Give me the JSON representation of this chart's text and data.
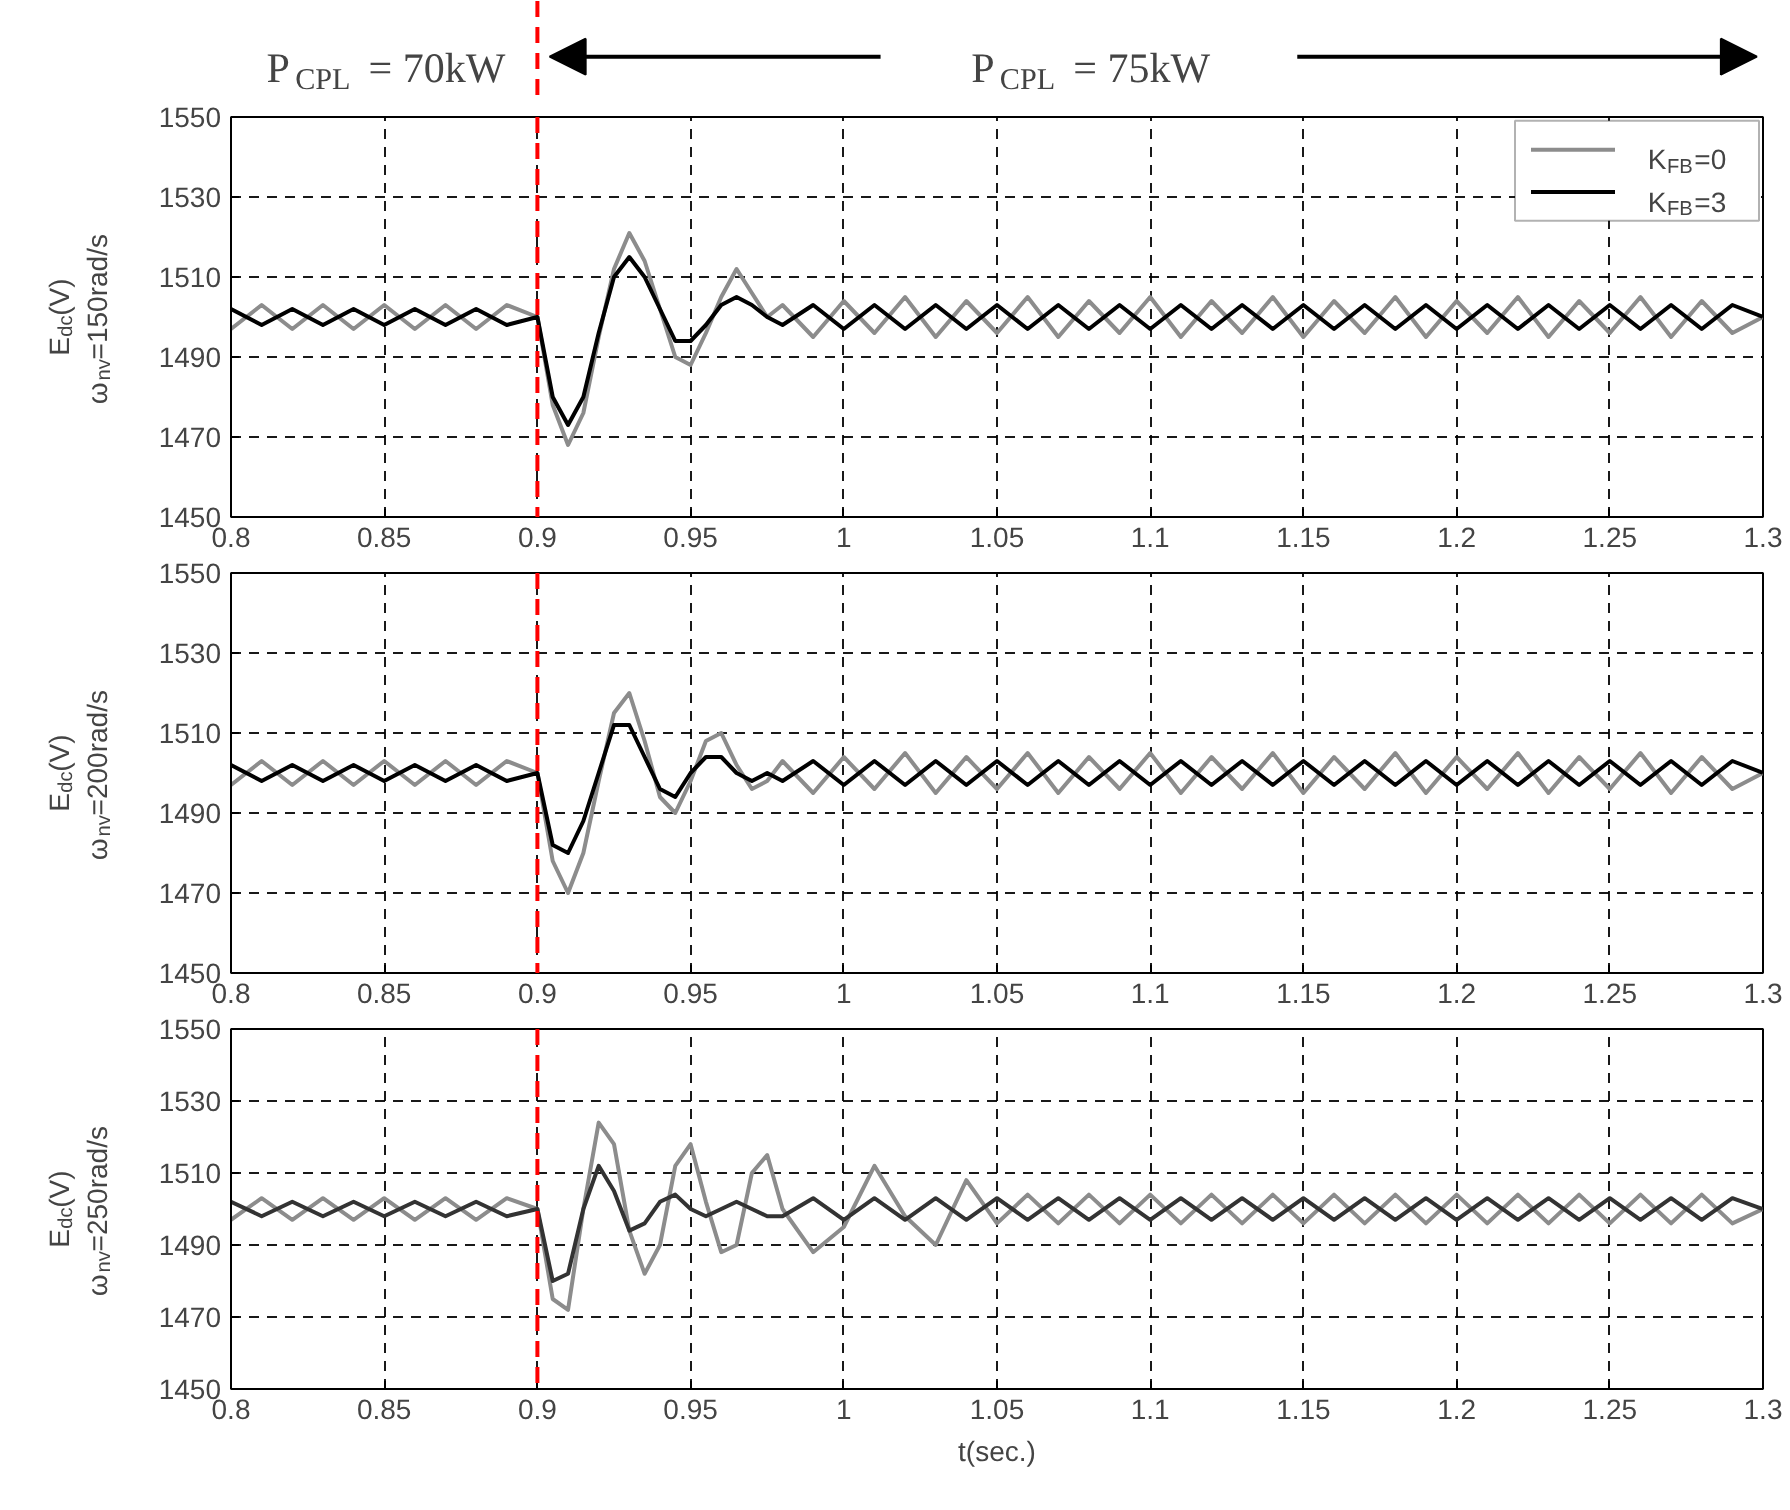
{
  "chart_data": [
    {
      "type": "line",
      "ylabel": "E$_{dc}$(V)\nω$_{nv}$=150rad/s",
      "xlim": [
        0.8,
        1.3
      ],
      "xticks": [
        0.8,
        0.85,
        0.9,
        0.95,
        1,
        1.05,
        1.1,
        1.15,
        1.2,
        1.25,
        1.3
      ],
      "ylim": [
        1450,
        1550
      ],
      "yticks": [
        1450,
        1470,
        1490,
        1510,
        1530,
        1550
      ],
      "grid": true,
      "legend": "top right",
      "x": [
        0.8,
        0.81,
        0.82,
        0.83,
        0.84,
        0.85,
        0.86,
        0.87,
        0.88,
        0.89,
        0.9,
        0.905,
        0.91,
        0.915,
        0.92,
        0.925,
        0.93,
        0.935,
        0.94,
        0.945,
        0.95,
        0.955,
        0.96,
        0.965,
        0.97,
        0.975,
        0.98,
        0.99,
        1.0,
        1.01,
        1.02,
        1.03,
        1.04,
        1.05,
        1.06,
        1.07,
        1.08,
        1.09,
        1.1,
        1.11,
        1.12,
        1.13,
        1.14,
        1.15,
        1.16,
        1.17,
        1.18,
        1.19,
        1.2,
        1.21,
        1.22,
        1.23,
        1.24,
        1.25,
        1.26,
        1.27,
        1.28,
        1.29,
        1.3
      ],
      "series": [
        {
          "name": "K$_{FB}$=0",
          "color": "#8c8c8c",
          "values": [
            1497,
            1503,
            1497,
            1503,
            1497,
            1503,
            1497,
            1503,
            1497,
            1503,
            1500,
            1478,
            1468,
            1476,
            1495,
            1512,
            1521,
            1514,
            1502,
            1490,
            1488,
            1496,
            1505,
            1512,
            1506,
            1500,
            1503,
            1495,
            1504,
            1496,
            1505,
            1495,
            1504,
            1496,
            1505,
            1495,
            1504,
            1496,
            1505,
            1495,
            1504,
            1496,
            1505,
            1495,
            1504,
            1496,
            1505,
            1495,
            1504,
            1496,
            1505,
            1495,
            1504,
            1496,
            1505,
            1495,
            1504,
            1496,
            1500
          ]
        },
        {
          "name": "K$_{FB}$=3",
          "color": "#000000",
          "values": [
            1502,
            1498,
            1502,
            1498,
            1502,
            1498,
            1502,
            1498,
            1502,
            1498,
            1500,
            1480,
            1473,
            1480,
            1496,
            1510,
            1515,
            1510,
            1502,
            1494,
            1494,
            1498,
            1503,
            1505,
            1503,
            1500,
            1498,
            1503,
            1497,
            1503,
            1497,
            1503,
            1497,
            1503,
            1497,
            1503,
            1497,
            1503,
            1497,
            1503,
            1497,
            1503,
            1497,
            1503,
            1497,
            1503,
            1497,
            1503,
            1497,
            1503,
            1497,
            1503,
            1497,
            1503,
            1497,
            1503,
            1497,
            1503,
            1500
          ]
        }
      ],
      "ref_lines": [
        {
          "axis": "x",
          "value": 0.9,
          "color": "#ff0000",
          "line_style": "dashed"
        }
      ],
      "annotations": [
        "P$_{CPL}$ = 70kW",
        "P$_{CPL}$ = 75kW"
      ]
    },
    {
      "type": "line",
      "ylabel": "E$_{dc}$(V)\nω$_{nv}$=200rad/s",
      "xlim": [
        0.8,
        1.3
      ],
      "xticks": [
        0.8,
        0.85,
        0.9,
        0.95,
        1,
        1.05,
        1.1,
        1.15,
        1.2,
        1.25,
        1.3
      ],
      "ylim": [
        1450,
        1550
      ],
      "yticks": [
        1450,
        1470,
        1490,
        1510,
        1530,
        1550
      ],
      "grid": true,
      "x": [
        0.8,
        0.81,
        0.82,
        0.83,
        0.84,
        0.85,
        0.86,
        0.87,
        0.88,
        0.89,
        0.9,
        0.905,
        0.91,
        0.915,
        0.92,
        0.925,
        0.93,
        0.935,
        0.94,
        0.945,
        0.95,
        0.955,
        0.96,
        0.965,
        0.97,
        0.975,
        0.98,
        0.99,
        1.0,
        1.01,
        1.02,
        1.03,
        1.04,
        1.05,
        1.06,
        1.07,
        1.08,
        1.09,
        1.1,
        1.11,
        1.12,
        1.13,
        1.14,
        1.15,
        1.16,
        1.17,
        1.18,
        1.19,
        1.2,
        1.21,
        1.22,
        1.23,
        1.24,
        1.25,
        1.26,
        1.27,
        1.28,
        1.29,
        1.3
      ],
      "series": [
        {
          "color": "#8c8c8c",
          "values": [
            1497,
            1503,
            1497,
            1503,
            1497,
            1503,
            1497,
            1503,
            1497,
            1503,
            1500,
            1478,
            1470,
            1480,
            1498,
            1515,
            1520,
            1508,
            1494,
            1490,
            1498,
            1508,
            1510,
            1502,
            1496,
            1498,
            1503,
            1495,
            1504,
            1496,
            1505,
            1495,
            1504,
            1496,
            1505,
            1495,
            1504,
            1496,
            1505,
            1495,
            1504,
            1496,
            1505,
            1495,
            1504,
            1496,
            1505,
            1495,
            1504,
            1496,
            1505,
            1495,
            1504,
            1496,
            1505,
            1495,
            1504,
            1496,
            1500
          ]
        },
        {
          "color": "#000000",
          "values": [
            1502,
            1498,
            1502,
            1498,
            1502,
            1498,
            1502,
            1498,
            1502,
            1498,
            1500,
            1482,
            1480,
            1488,
            1500,
            1512,
            1512,
            1504,
            1496,
            1494,
            1500,
            1504,
            1504,
            1500,
            1498,
            1500,
            1498,
            1503,
            1497,
            1503,
            1497,
            1503,
            1497,
            1503,
            1497,
            1503,
            1497,
            1503,
            1497,
            1503,
            1497,
            1503,
            1497,
            1503,
            1497,
            1503,
            1497,
            1503,
            1497,
            1503,
            1497,
            1503,
            1497,
            1503,
            1497,
            1503,
            1497,
            1503,
            1500
          ]
        }
      ],
      "ref_lines": [
        {
          "axis": "x",
          "value": 0.9,
          "color": "#ff0000",
          "line_style": "dashed"
        }
      ]
    },
    {
      "type": "line",
      "xlabel": "t(sec.)",
      "ylabel": "E$_{dc}$(V)\nω$_{nv}$=250rad/s",
      "xlim": [
        0.8,
        1.3
      ],
      "xticks": [
        0.8,
        0.85,
        0.9,
        0.95,
        1,
        1.05,
        1.1,
        1.15,
        1.2,
        1.25,
        1.3
      ],
      "ylim": [
        1450,
        1550
      ],
      "yticks": [
        1450,
        1470,
        1490,
        1510,
        1530,
        1550
      ],
      "grid": true,
      "x": [
        0.8,
        0.81,
        0.82,
        0.83,
        0.84,
        0.85,
        0.86,
        0.87,
        0.88,
        0.89,
        0.9,
        0.905,
        0.91,
        0.915,
        0.92,
        0.925,
        0.93,
        0.935,
        0.94,
        0.945,
        0.95,
        0.955,
        0.96,
        0.965,
        0.97,
        0.975,
        0.98,
        0.99,
        1.0,
        1.01,
        1.02,
        1.03,
        1.04,
        1.05,
        1.06,
        1.07,
        1.08,
        1.09,
        1.1,
        1.11,
        1.12,
        1.13,
        1.14,
        1.15,
        1.16,
        1.17,
        1.18,
        1.19,
        1.2,
        1.21,
        1.22,
        1.23,
        1.24,
        1.25,
        1.26,
        1.27,
        1.28,
        1.29,
        1.3
      ],
      "series": [
        {
          "color": "#8c8c8c",
          "values": [
            1497,
            1503,
            1497,
            1503,
            1497,
            1503,
            1497,
            1503,
            1497,
            1503,
            1500,
            1475,
            1472,
            1500,
            1524,
            1518,
            1494,
            1482,
            1490,
            1512,
            1518,
            1502,
            1488,
            1490,
            1510,
            1515,
            1500,
            1488,
            1495,
            1512,
            1498,
            1490,
            1508,
            1496,
            1504,
            1496,
            1504,
            1496,
            1504,
            1496,
            1504,
            1496,
            1504,
            1496,
            1504,
            1496,
            1504,
            1496,
            1504,
            1496,
            1504,
            1496,
            1504,
            1496,
            1504,
            1496,
            1504,
            1496,
            1500
          ]
        },
        {
          "color": "#333333",
          "values": [
            1502,
            1498,
            1502,
            1498,
            1502,
            1498,
            1502,
            1498,
            1502,
            1498,
            1500,
            1480,
            1482,
            1500,
            1512,
            1505,
            1494,
            1496,
            1502,
            1504,
            1500,
            1498,
            1500,
            1502,
            1500,
            1498,
            1498,
            1503,
            1497,
            1503,
            1497,
            1503,
            1497,
            1503,
            1497,
            1503,
            1497,
            1503,
            1497,
            1503,
            1497,
            1503,
            1497,
            1503,
            1497,
            1503,
            1497,
            1503,
            1497,
            1503,
            1497,
            1503,
            1497,
            1503,
            1497,
            1503,
            1497,
            1503,
            1500
          ]
        }
      ],
      "ref_lines": [
        {
          "axis": "x",
          "value": 0.9,
          "color": "#ff0000",
          "line_style": "dashed"
        }
      ]
    }
  ]
}
